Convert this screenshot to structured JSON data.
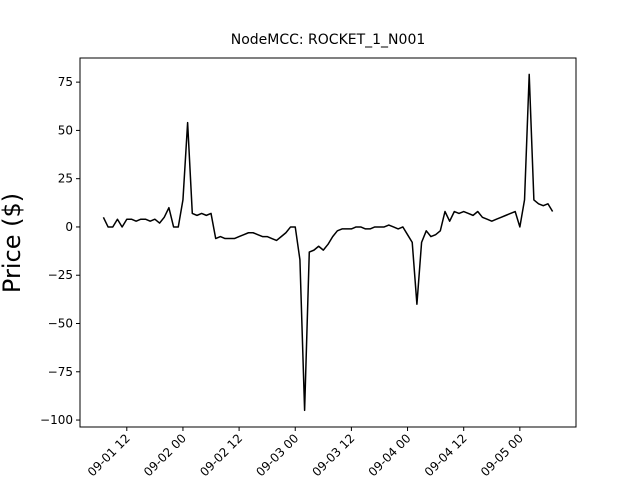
{
  "chart_data": {
    "type": "line",
    "title": "NodeMCC: ROCKET_1_N001",
    "y_label": "Price ($)",
    "x": [
      "09-01 07",
      "09-01 08",
      "09-01 09",
      "09-01 10",
      "09-01 11",
      "09-01 12",
      "09-01 13",
      "09-01 14",
      "09-01 15",
      "09-01 16",
      "09-01 17",
      "09-01 18",
      "09-01 19",
      "09-01 20",
      "09-01 21",
      "09-01 22",
      "09-01 23",
      "09-02 00",
      "09-02 01",
      "09-02 02",
      "09-02 03",
      "09-02 04",
      "09-02 05",
      "09-02 06",
      "09-02 07",
      "09-02 08",
      "09-02 09",
      "09-02 10",
      "09-02 11",
      "09-02 12",
      "09-02 13",
      "09-02 14",
      "09-02 15",
      "09-02 16",
      "09-02 17",
      "09-02 18",
      "09-02 19",
      "09-02 20",
      "09-02 21",
      "09-02 22",
      "09-02 23",
      "09-03 00",
      "09-03 01",
      "09-03 02",
      "09-03 03",
      "09-03 04",
      "09-03 05",
      "09-03 06",
      "09-03 07",
      "09-03 08",
      "09-03 09",
      "09-03 10",
      "09-03 11",
      "09-03 12",
      "09-03 13",
      "09-03 14",
      "09-03 15",
      "09-03 16",
      "09-03 17",
      "09-03 18",
      "09-03 19",
      "09-03 20",
      "09-03 21",
      "09-03 22",
      "09-03 23",
      "09-04 00",
      "09-04 01",
      "09-04 02",
      "09-04 03",
      "09-04 04",
      "09-04 05",
      "09-04 06",
      "09-04 07",
      "09-04 08",
      "09-04 09",
      "09-04 10",
      "09-04 11",
      "09-04 12",
      "09-04 13",
      "09-04 14",
      "09-04 15",
      "09-04 16",
      "09-04 17",
      "09-04 18",
      "09-04 19",
      "09-04 20",
      "09-04 21",
      "09-04 22",
      "09-04 23",
      "09-05 00",
      "09-05 01",
      "09-05 02",
      "09-05 03",
      "09-05 04",
      "09-05 05",
      "09-05 06",
      "09-05 07"
    ],
    "series": [
      {
        "color": "#000000",
        "values": [
          5,
          0,
          0,
          4,
          0,
          4,
          4,
          3,
          4,
          4,
          3,
          4,
          2,
          5,
          10,
          0,
          0,
          14,
          54,
          7,
          6,
          7,
          6,
          7,
          -6,
          -5,
          -6,
          -6,
          -6,
          -5,
          -4,
          -3,
          -3,
          -4,
          -5,
          -5,
          -6,
          -7,
          -5,
          -3,
          0,
          0,
          -17,
          -95,
          -13,
          -12,
          -10,
          -12,
          -9,
          -5,
          -2,
          -1,
          -1,
          -1,
          0,
          0,
          -1,
          -1,
          0,
          0,
          0,
          1,
          0,
          -1,
          0,
          -4,
          -8,
          -40,
          -8,
          -2,
          -5,
          -4,
          -2,
          8,
          3,
          8,
          7,
          8,
          7,
          6,
          8,
          5,
          4,
          3,
          4,
          5,
          6,
          7,
          8,
          0,
          14,
          79,
          14,
          12,
          11,
          12,
          8
        ]
      }
    ],
    "xlim": [
      "09-01 02",
      "09-05 12"
    ],
    "xticks": [
      "09-01 12",
      "09-02 00",
      "09-02 12",
      "09-03 00",
      "09-03 12",
      "09-04 00",
      "09-04 12",
      "09-05 00"
    ],
    "ylim": [
      -103.6,
      87.5
    ],
    "yticks": [
      {
        "value": -100,
        "label": "−100"
      },
      {
        "value": -75,
        "label": "−75"
      },
      {
        "value": -50,
        "label": "−50"
      },
      {
        "value": -25,
        "label": "−25"
      },
      0,
      25,
      50,
      75
    ]
  }
}
